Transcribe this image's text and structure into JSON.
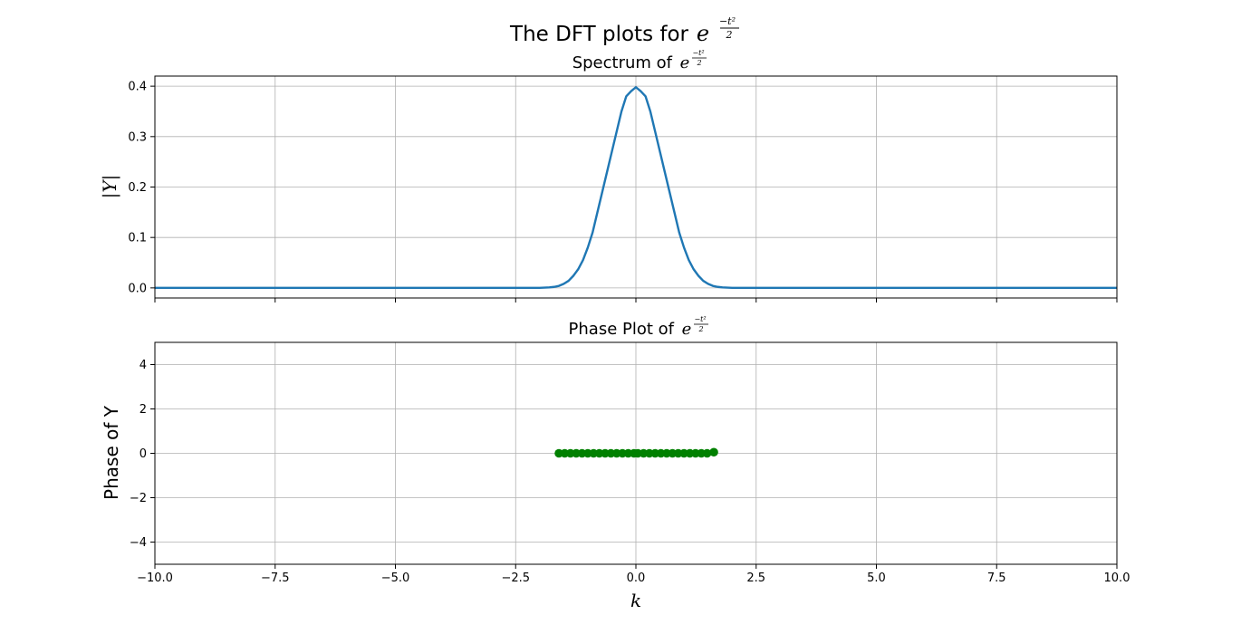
{
  "figure": {
    "suptitle_text": "The DFT plots for ",
    "suptitle_base": "e",
    "exponent_numerator": "−t²",
    "exponent_denominator": "2"
  },
  "chart_data": [
    {
      "type": "line",
      "title_text": "Spectrum of ",
      "title_base": "e",
      "ylabel": "|Y|",
      "xlim": [
        -10,
        10
      ],
      "ylim": [
        -0.02,
        0.42
      ],
      "yticks": [
        0.0,
        0.1,
        0.2,
        0.3,
        0.4
      ],
      "ytick_labels": [
        "0.0",
        "0.1",
        "0.2",
        "0.3",
        "0.4"
      ],
      "xticks": [
        -10,
        -7.5,
        -5,
        -2.5,
        0,
        2.5,
        5,
        7.5,
        10
      ],
      "grid": true,
      "series": [
        {
          "color": "#1f77b4",
          "x": [
            -10,
            -2.5,
            -2.2,
            -2.0,
            -1.8,
            -1.7,
            -1.6,
            -1.5,
            -1.4,
            -1.3,
            -1.2,
            -1.1,
            -1.0,
            -0.9,
            -0.8,
            -0.7,
            -0.6,
            -0.5,
            -0.4,
            -0.3,
            -0.2,
            -0.1,
            0,
            0.1,
            0.2,
            0.3,
            0.4,
            0.5,
            0.6,
            0.7,
            0.8,
            0.9,
            1.0,
            1.1,
            1.2,
            1.3,
            1.4,
            1.5,
            1.6,
            1.7,
            1.8,
            2.0,
            2.2,
            2.5,
            10
          ],
          "y": [
            0.0,
            0.0,
            0.0,
            0.0,
            0.001,
            0.002,
            0.004,
            0.008,
            0.014,
            0.024,
            0.037,
            0.055,
            0.08,
            0.11,
            0.15,
            0.19,
            0.23,
            0.27,
            0.31,
            0.35,
            0.38,
            0.39,
            0.398,
            0.39,
            0.38,
            0.35,
            0.31,
            0.27,
            0.23,
            0.19,
            0.15,
            0.11,
            0.08,
            0.055,
            0.037,
            0.024,
            0.014,
            0.008,
            0.004,
            0.002,
            0.001,
            0.0,
            0.0,
            0.0,
            0.0
          ]
        }
      ]
    },
    {
      "type": "scatter",
      "title_text": "Phase Plot of ",
      "title_base": "e",
      "ylabel": "Phase of Y",
      "xlabel": "k",
      "xlim": [
        -10,
        10
      ],
      "ylim": [
        -5,
        5
      ],
      "yticks": [
        -4,
        -2,
        0,
        2,
        4
      ],
      "ytick_labels": [
        "−4",
        "−2",
        "0",
        "2",
        "4"
      ],
      "xticks": [
        -10,
        -7.5,
        -5,
        -2.5,
        0,
        2.5,
        5,
        7.5,
        10
      ],
      "xtick_labels": [
        "−10.0",
        "−7.5",
        "−5.0",
        "−2.5",
        "0.0",
        "2.5",
        "5.0",
        "7.5",
        "10.0"
      ],
      "grid": true,
      "series": [
        {
          "color": "#008000",
          "x": [
            -1.6,
            -1.48,
            -1.36,
            -1.24,
            -1.12,
            -1.0,
            -0.88,
            -0.76,
            -0.64,
            -0.52,
            -0.4,
            -0.28,
            -0.16,
            -0.04,
            0.04,
            0.16,
            0.28,
            0.4,
            0.52,
            0.64,
            0.76,
            0.88,
            1.0,
            1.12,
            1.24,
            1.36,
            1.48,
            1.62
          ],
          "y": [
            0,
            0,
            0,
            0,
            0,
            0,
            0,
            0,
            0,
            0,
            0,
            0,
            0,
            0,
            0,
            0,
            0,
            0,
            0,
            0,
            0,
            0,
            0,
            0,
            0,
            0,
            0,
            0.05
          ]
        }
      ]
    }
  ]
}
